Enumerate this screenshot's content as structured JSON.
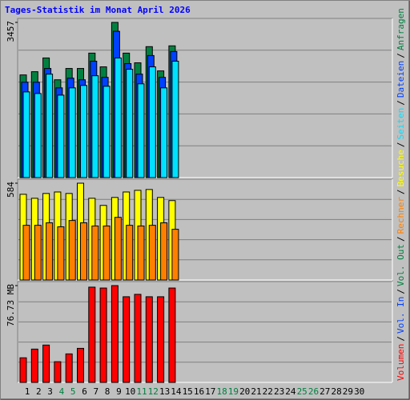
{
  "title": "Tages-Statistik im Monat April 2026",
  "legend_separator": "/",
  "chart_data": [
    {
      "type": "bar",
      "ylim": [
        0,
        3457
      ],
      "yticks": [
        3457
      ],
      "grid": true,
      "series": [
        {
          "name": "Anfragen",
          "color": "#008040",
          "values": [
            2287,
            2359,
            2665,
            2179,
            2431,
            2431,
            2773,
            2467,
            3457,
            2773,
            2557,
            2917,
            2377,
            2935,
            null,
            null,
            null,
            null,
            null,
            null,
            null,
            null,
            null,
            null,
            null,
            null,
            null,
            null,
            null,
            null
          ]
        },
        {
          "name": "Dateien",
          "color": "#0040FF",
          "values": [
            2125,
            2125,
            2431,
            1999,
            2215,
            2179,
            2593,
            2233,
            3259,
            2539,
            2305,
            2719,
            2233,
            2809,
            null,
            null,
            null,
            null,
            null,
            null,
            null,
            null,
            null,
            null,
            null,
            null,
            null,
            null,
            null,
            null
          ]
        },
        {
          "name": "Seiten",
          "color": "#00E0FF",
          "values": [
            1909,
            1873,
            2305,
            1837,
            1999,
            2053,
            2269,
            2035,
            2665,
            2413,
            2089,
            2467,
            1999,
            2593,
            null,
            null,
            null,
            null,
            null,
            null,
            null,
            null,
            null,
            null,
            null,
            null,
            null,
            null,
            null,
            null
          ]
        }
      ]
    },
    {
      "type": "bar",
      "ylim": [
        0,
        584
      ],
      "yticks": [
        584
      ],
      "grid": true,
      "series": [
        {
          "name": "Besuche",
          "color": "#FFFF00",
          "values": [
            517,
            493,
            522,
            531,
            522,
            584,
            493,
            450,
            498,
            531,
            541,
            546,
            498,
            479,
            null,
            null,
            null,
            null,
            null,
            null,
            null,
            null,
            null,
            null,
            null,
            null,
            null,
            null,
            null,
            null
          ]
        },
        {
          "name": "Rechner",
          "color": "#FF8000",
          "values": [
            330,
            330,
            345,
            321,
            359,
            345,
            326,
            326,
            378,
            330,
            326,
            330,
            345,
            306,
            null,
            null,
            null,
            null,
            null,
            null,
            null,
            null,
            null,
            null,
            null,
            null,
            null,
            null,
            null,
            null
          ]
        }
      ]
    },
    {
      "type": "bar",
      "ylim": [
        0,
        76.73
      ],
      "yticks": [
        {
          "value": 76.73,
          "label": "76.73 MB"
        }
      ],
      "grid": true,
      "categories": [
        "1",
        "2",
        "3",
        "4",
        "5",
        "6",
        "7",
        "8",
        "9",
        "10",
        "11",
        "12",
        "13",
        "14",
        "15",
        "16",
        "17",
        "18",
        "19",
        "20",
        "21",
        "22",
        "23",
        "24",
        "25",
        "26",
        "27",
        "28",
        "29",
        "30"
      ],
      "category_colors": [
        "#000000",
        "#000000",
        "#000000",
        "#008040",
        "#008040",
        "#000000",
        "#000000",
        "#000000",
        "#000000",
        "#000000",
        "#008040",
        "#008040",
        "#000000",
        "#000000",
        "#000000",
        "#000000",
        "#000000",
        "#008040",
        "#008040",
        "#000000",
        "#000000",
        "#000000",
        "#000000",
        "#000000",
        "#008040",
        "#008040",
        "#000000",
        "#000000",
        "#000000",
        "#000000"
      ],
      "series": [
        {
          "name": "Volumen",
          "color": "#FF0000",
          "values": [
            19.5,
            26.4,
            29.6,
            16.4,
            22.6,
            27.0,
            75.5,
            74.8,
            76.73,
            67.9,
            69.8,
            67.9,
            67.9,
            74.8,
            null,
            null,
            null,
            null,
            null,
            null,
            null,
            null,
            null,
            null,
            null,
            null,
            null,
            null,
            null,
            null
          ]
        },
        {
          "name": "Vol. In",
          "color": "#0040FF",
          "values": [
            null,
            null,
            null,
            null,
            null,
            null,
            null,
            null,
            null,
            null,
            null,
            null,
            null,
            null,
            null,
            null,
            null,
            null,
            null,
            null,
            null,
            null,
            null,
            null,
            null,
            null,
            null,
            null,
            null,
            null
          ]
        },
        {
          "name": "Vol. Out",
          "color": "#008040",
          "values": [
            null,
            null,
            null,
            null,
            null,
            null,
            null,
            null,
            null,
            null,
            null,
            null,
            null,
            null,
            null,
            null,
            null,
            null,
            null,
            null,
            null,
            null,
            null,
            null,
            null,
            null,
            null,
            null,
            null,
            null
          ]
        }
      ]
    }
  ]
}
